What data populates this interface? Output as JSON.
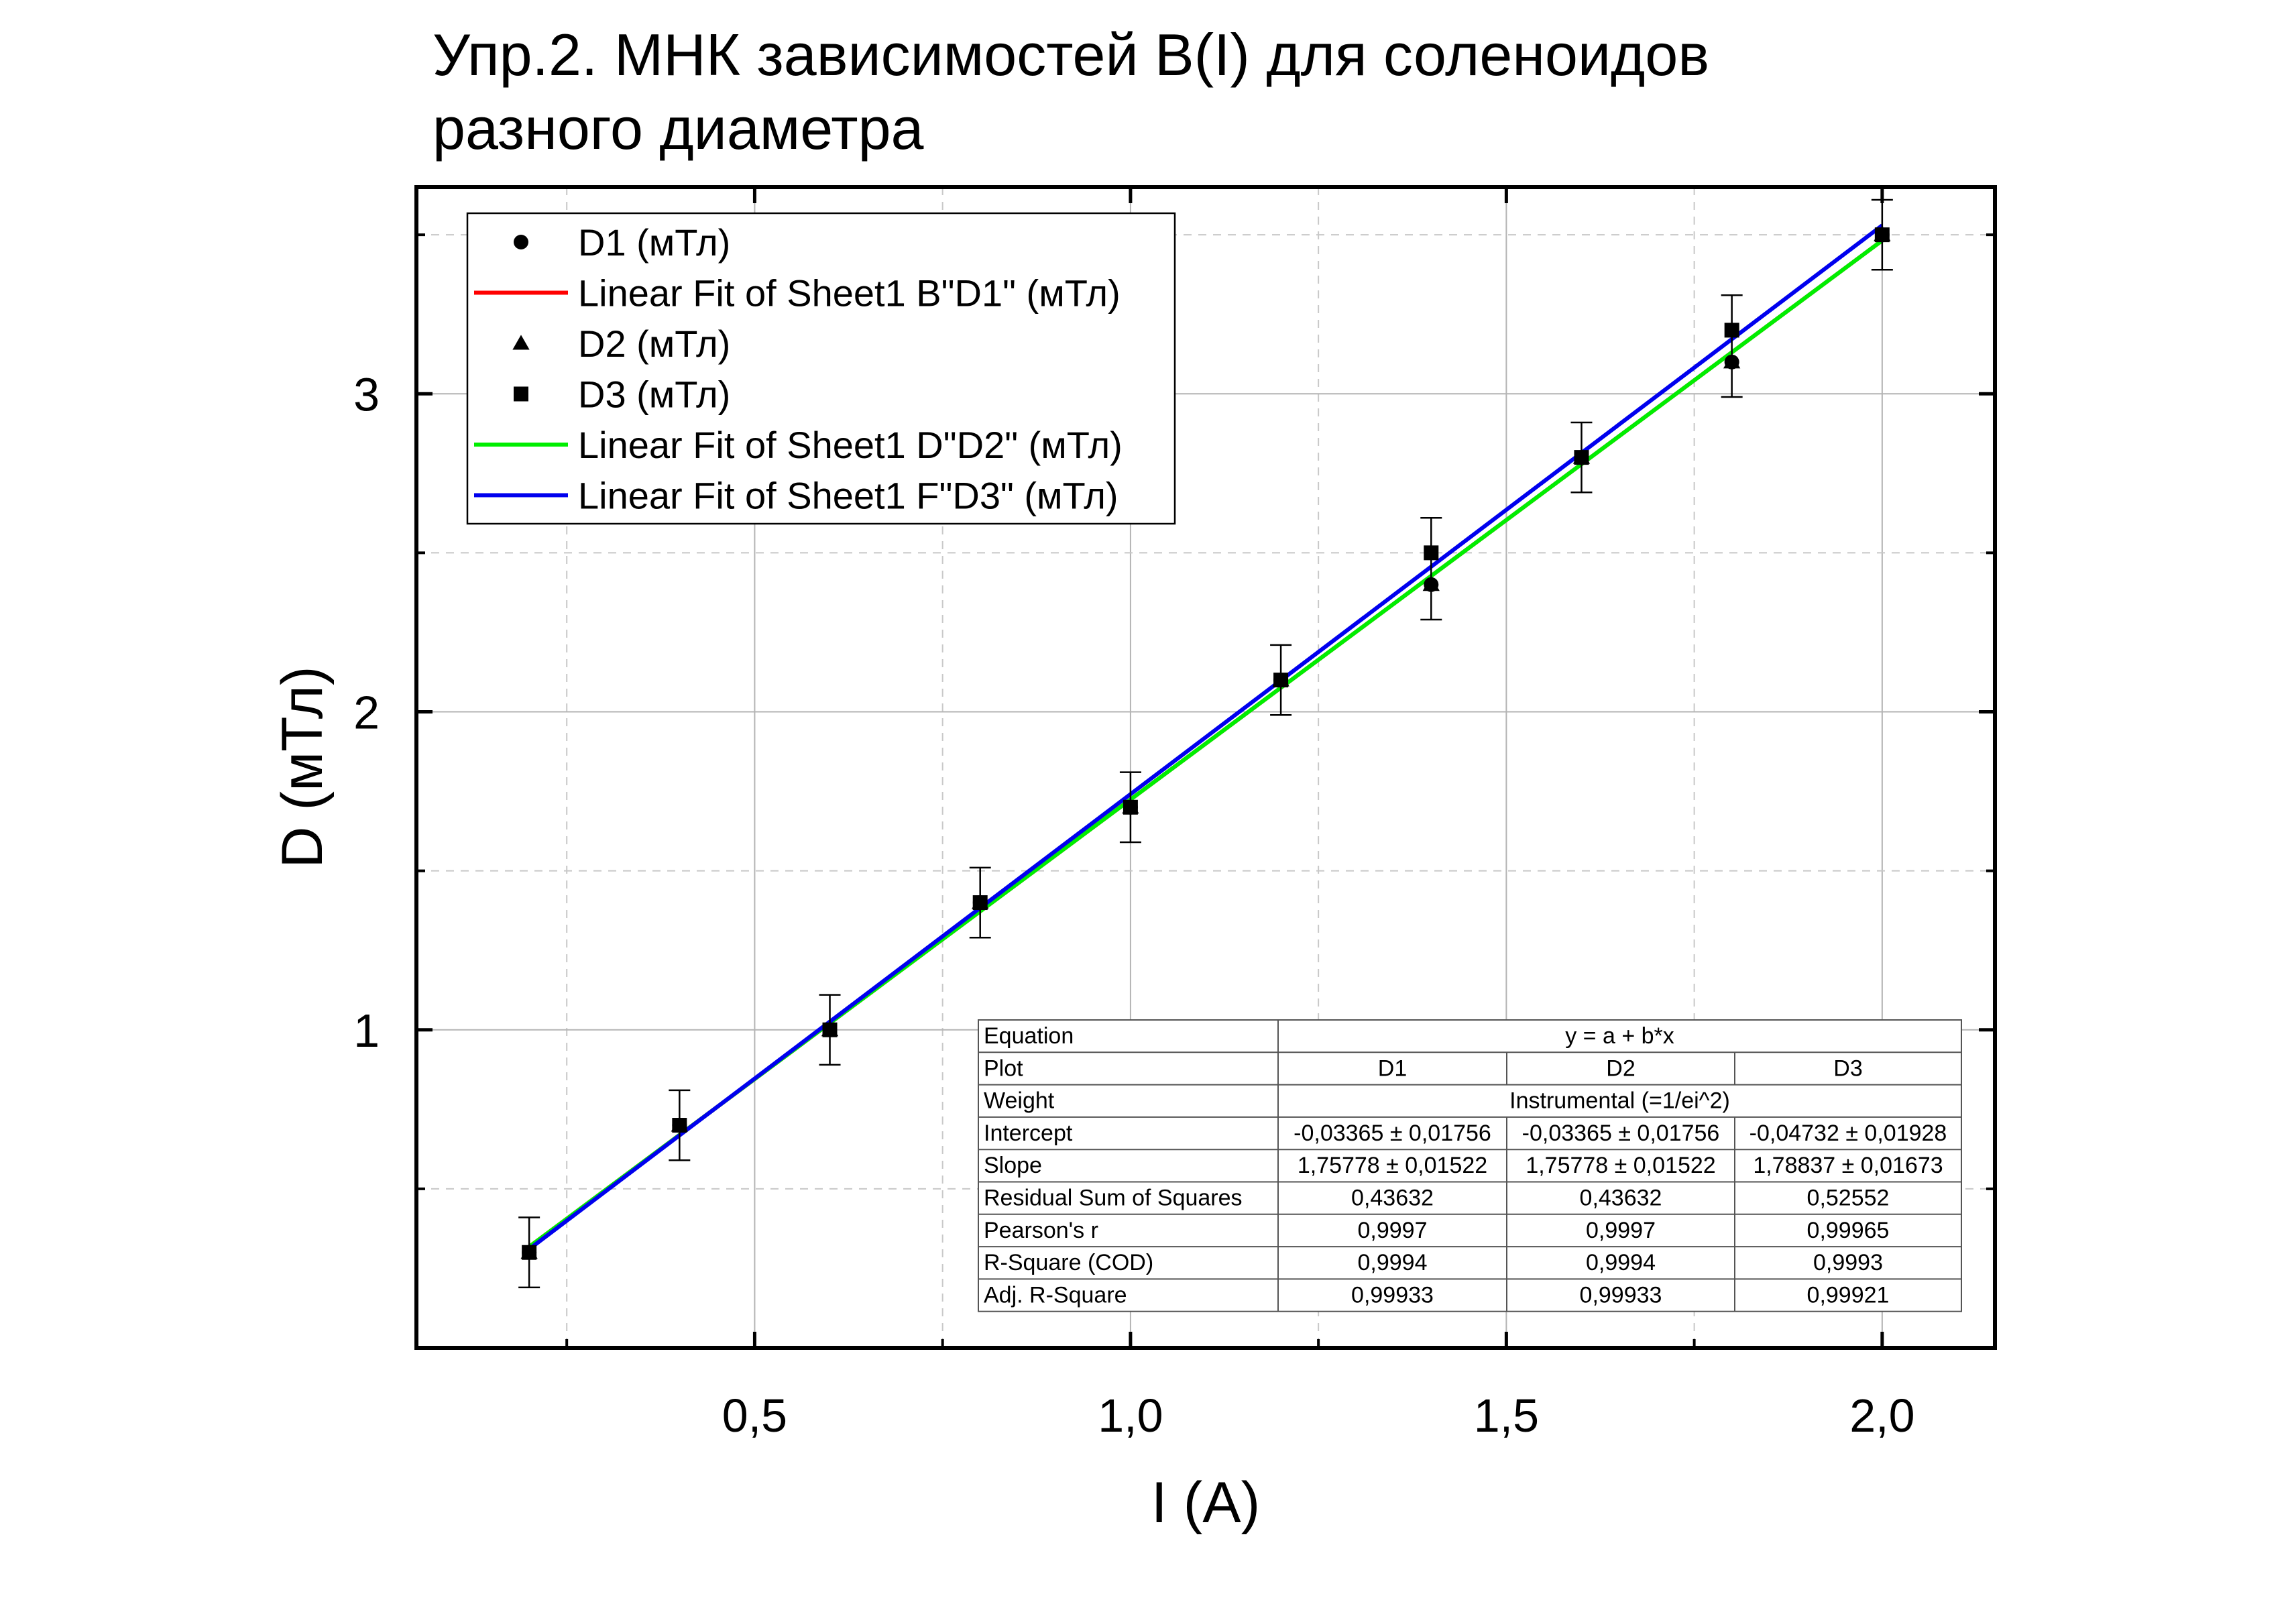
{
  "chart_data": {
    "type": "scatter",
    "title": [
      "Упр.2. МНК зависимостей B(I) для соленоидов",
      "разного диаметра"
    ],
    "xlabel": "I (A)",
    "ylabel": "D (мТл)",
    "xlim": [
      0.05,
      2.15
    ],
    "ylim": [
      0.0,
      3.65
    ],
    "x_ticks": [
      0.5,
      1.0,
      1.5,
      2.0
    ],
    "x_tick_labels": [
      "0,5",
      "1,0",
      "1,5",
      "2,0"
    ],
    "y_ticks": [
      1,
      2,
      3
    ],
    "y_tick_labels": [
      "1",
      "2",
      "3"
    ],
    "grid": true,
    "legend_position": "top-left",
    "x": [
      0.2,
      0.4,
      0.6,
      0.8,
      1.0,
      1.2,
      1.4,
      1.6,
      1.8,
      2.0
    ],
    "error_bar": 0.11,
    "series": [
      {
        "name": "D1 (мТл)",
        "marker": "circle",
        "color": "#000000",
        "values": [
          0.3,
          0.7,
          1.0,
          1.4,
          1.7,
          2.1,
          2.4,
          2.8,
          3.1,
          3.5
        ]
      },
      {
        "name": "D2 (мТл)",
        "marker": "triangle",
        "color": "#000000",
        "values": [
          0.3,
          0.7,
          1.0,
          1.4,
          1.7,
          2.1,
          2.4,
          2.8,
          3.1,
          3.5
        ]
      },
      {
        "name": "D3 (мТл)",
        "marker": "square",
        "color": "#000000",
        "values": [
          0.3,
          0.7,
          1.0,
          1.4,
          1.7,
          2.1,
          2.5,
          2.8,
          3.2,
          3.5
        ]
      }
    ],
    "fits": [
      {
        "name": "Linear Fit of Sheet1 B\"D1\" (мТл)",
        "color": "#ff0000",
        "intercept": -0.03365,
        "slope": 1.75778,
        "x_range": [
          0.2,
          2.0
        ]
      },
      {
        "name": "Linear Fit of Sheet1 D\"D2\" (мТл)",
        "color": "#00ee00",
        "intercept": -0.03365,
        "slope": 1.75778,
        "x_range": [
          0.2,
          2.0
        ]
      },
      {
        "name": "Linear Fit of Sheet1 F\"D3\" (мТл)",
        "color": "#0000ee",
        "intercept": -0.04732,
        "slope": 1.78837,
        "x_range": [
          0.2,
          2.0
        ]
      }
    ],
    "legend": [
      {
        "label": "D1 (мТл)",
        "kind": "circle",
        "color": "#000000"
      },
      {
        "label": "Linear Fit of Sheet1 B\"D1\" (мТл)",
        "kind": "line",
        "color": "#ff0000"
      },
      {
        "label": "D2 (мТл)",
        "kind": "triangle",
        "color": "#000000"
      },
      {
        "label": "D3 (мТл)",
        "kind": "square",
        "color": "#000000"
      },
      {
        "label": "Linear Fit of Sheet1 D\"D2\" (мТл)",
        "kind": "line",
        "color": "#00ee00"
      },
      {
        "label": "Linear Fit of Sheet1 F\"D3\" (мТл)",
        "kind": "line",
        "color": "#0000ee"
      }
    ],
    "stats_table": {
      "equation_label": "Equation",
      "equation": "y = a + b*x",
      "plot_label": "Plot",
      "plots": [
        "D1",
        "D2",
        "D3"
      ],
      "weight_label": "Weight",
      "weight": "Instrumental (=1/ei^2)",
      "rows": [
        {
          "label": "Intercept",
          "values": [
            "-0,03365 ± 0,01756",
            "-0,03365 ± 0,01756",
            "-0,04732 ± 0,01928"
          ]
        },
        {
          "label": "Slope",
          "values": [
            "1,75778 ± 0,01522",
            "1,75778 ± 0,01522",
            "1,78837 ± 0,01673"
          ]
        },
        {
          "label": "Residual Sum of Squares",
          "values": [
            "0,43632",
            "0,43632",
            "0,52552"
          ]
        },
        {
          "label": "Pearson's r",
          "values": [
            "0,9997",
            "0,9997",
            "0,99965"
          ]
        },
        {
          "label": "R-Square (COD)",
          "values": [
            "0,9994",
            "0,9994",
            "0,9993"
          ]
        },
        {
          "label": "Adj. R-Square",
          "values": [
            "0,99933",
            "0,99933",
            "0,99921"
          ]
        }
      ]
    }
  }
}
